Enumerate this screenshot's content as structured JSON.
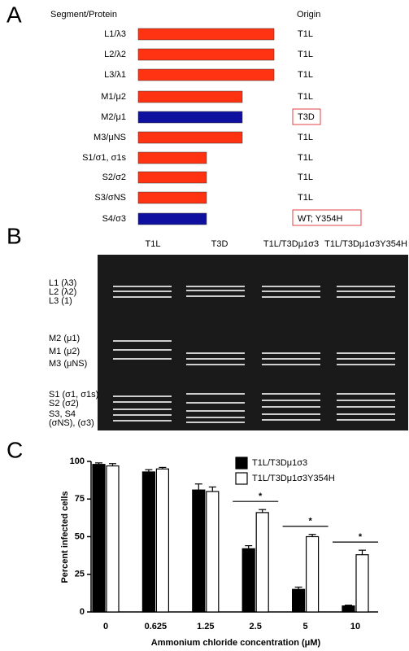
{
  "panel_labels": {
    "a": "A",
    "b": "B",
    "c": "C"
  },
  "panel_a": {
    "header_left": "Segment/Protein",
    "header_right": "Origin",
    "rows": [
      {
        "segment": "L1/λ3",
        "origin": "T1L"
      },
      {
        "segment": "L2/λ2",
        "origin": "T1L"
      },
      {
        "segment": "L3/λ1",
        "origin": "T1L"
      },
      {
        "segment": "M1/μ2",
        "origin": "T1L"
      },
      {
        "segment": "M2/μ1",
        "origin": "T3D"
      },
      {
        "segment": "M3/μNS",
        "origin": "T1L"
      },
      {
        "segment": "S1/σ1, σ1s",
        "origin": "T1L"
      },
      {
        "segment": "S2/σ2",
        "origin": "T1L"
      },
      {
        "segment": "S3/σNS",
        "origin": "T1L"
      },
      {
        "segment": "S4/σ3",
        "origin": "WT; Y354H"
      }
    ]
  },
  "panel_b": {
    "lanes": [
      "T1L",
      "T3D",
      "T1L/T3Dμ1σ3",
      "T1L/T3Dμ1σ3Y354H"
    ],
    "bands": [
      "L1 (λ3)",
      "L2 (λ2)",
      "L3 (1)",
      "M2 (μ1)",
      "M1 (μ2)",
      "M3 (μNS)",
      "S1 (σ1, σ1s)",
      "S2 (σ2)",
      "S3, S4",
      "(σNS), (σ3)"
    ]
  },
  "chart_data": {
    "type": "bar",
    "ylabel": "Percent infected cells",
    "xlabel": "Ammonium chloride concentration (μM)",
    "categories": [
      "0",
      "0.625",
      "1.25",
      "2.5",
      "5",
      "10"
    ],
    "series": [
      {
        "name": "T1L/T3Dμ1σ3",
        "color": "#000000",
        "values": [
          98,
          93,
          81,
          42,
          15,
          4
        ],
        "errors": [
          1,
          1.5,
          4,
          2,
          1.5,
          0.5
        ]
      },
      {
        "name": "T1L/T3Dμ1σ3Y354H",
        "color": "#ffffff",
        "values": [
          97,
          95,
          80,
          66,
          50,
          38
        ],
        "errors": [
          1.5,
          1,
          3,
          2,
          1.5,
          3
        ]
      }
    ],
    "significance": [
      null,
      null,
      null,
      "*",
      "*",
      "*"
    ],
    "ylim": [
      0,
      100
    ],
    "yticks": [
      0,
      25,
      50,
      75,
      100
    ],
    "legend": "upper right"
  }
}
